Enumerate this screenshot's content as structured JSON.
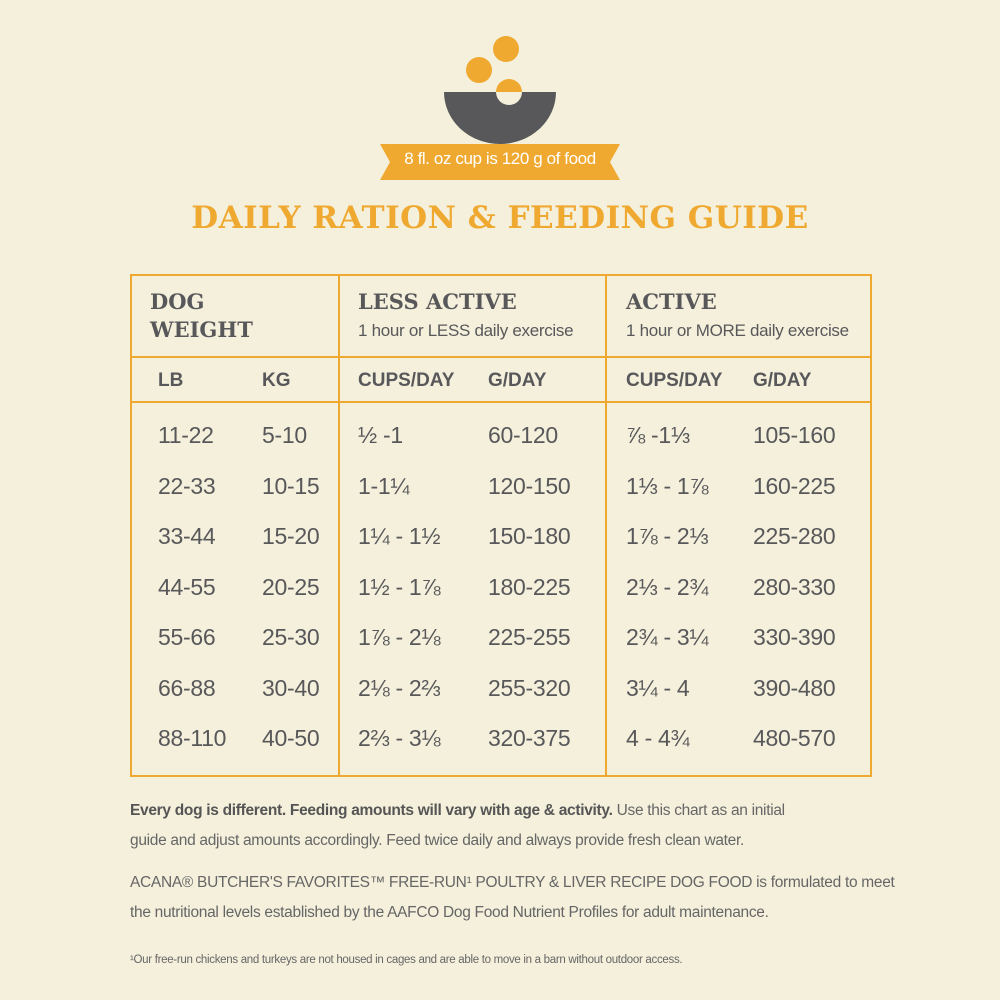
{
  "colors": {
    "accent": "#f0a930",
    "bowl": "#58585a",
    "background": "#f4f0dc"
  },
  "logo": {
    "icon": "bowl-with-food-icon"
  },
  "ribbon": {
    "text": "8 fl. oz cup is 120 g of food"
  },
  "title": "DAILY RATION & FEEDING GUIDE",
  "table": {
    "groups": [
      {
        "title_line1": "DOG",
        "title_line2": "WEIGHT",
        "subtitle": ""
      },
      {
        "title_line1": "LESS ACTIVE",
        "subtitle": "1 hour or LESS daily exercise"
      },
      {
        "title_line1": "ACTIVE",
        "subtitle": "1 hour or MORE daily exercise"
      }
    ],
    "columns": [
      "LB",
      "KG",
      "CUPS/DAY",
      "G/DAY",
      "CUPS/DAY",
      "G/DAY"
    ],
    "rows": [
      [
        "11-22",
        "5-10",
        "½ -1",
        "60-120",
        "⅞ -1⅓",
        "105-160"
      ],
      [
        "22-33",
        "10-15",
        "1-1¼",
        "120-150",
        "1⅓ - 1⅞",
        "160-225"
      ],
      [
        "33-44",
        "15-20",
        "1¼ - 1½",
        "150-180",
        "1⅞ - 2⅓",
        "225-280"
      ],
      [
        "44-55",
        "20-25",
        "1½ - 1⅞",
        "180-225",
        "2⅓ - 2¾",
        "280-330"
      ],
      [
        "55-66",
        "25-30",
        "1⅞ - 2⅛",
        "225-255",
        "2¾ - 3¼",
        "330-390"
      ],
      [
        "66-88",
        "30-40",
        "2⅛ - 2⅔",
        "255-320",
        "3¼ - 4",
        "390-480"
      ],
      [
        "88-110",
        "40-50",
        "2⅔ - 3⅛",
        "320-375",
        "4 - 4¾",
        "480-570"
      ]
    ]
  },
  "notes": {
    "p1_bold": "Every dog is different. Feeding amounts will vary with age & activity.",
    "p1_rest": " Use this chart as an initial",
    "p1_line2": "guide and adjust amounts accordingly. Feed twice daily and always provide fresh clean water.",
    "p2_line1": "ACANA® BUTCHER'S FAVORITES™ FREE-RUN¹ POULTRY & LIVER RECIPE DOG FOOD is formulated to meet",
    "p2_line2": "the nutritional levels established by the AAFCO Dog Food Nutrient Profiles for adult maintenance.",
    "footnote": "¹Our free-run chickens and turkeys are not housed in cages and are able to move in a barn without outdoor access."
  }
}
